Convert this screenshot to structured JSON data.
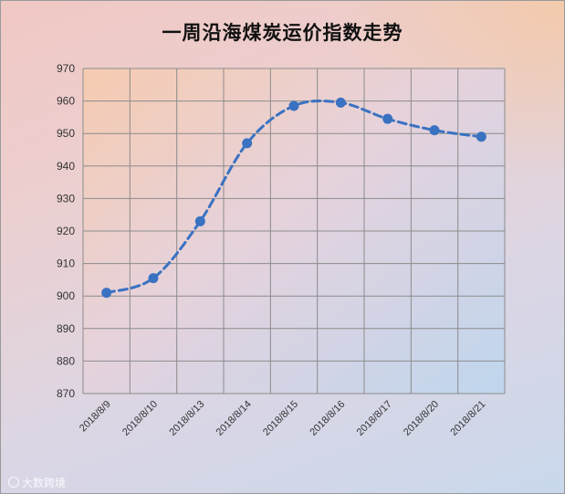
{
  "chart_data": {
    "type": "line",
    "title": "一周沿海煤炭运价指数走势",
    "categories": [
      "2018/8/9",
      "2018/8/10",
      "2018/8/13",
      "2018/8/14",
      "2018/8/15",
      "2018/8/16",
      "2018/8/17",
      "2018/8/20",
      "2018/8/21"
    ],
    "values": [
      901,
      905.5,
      923,
      947,
      958.5,
      959.5,
      954.5,
      951,
      949
    ],
    "ylim": [
      870,
      970
    ],
    "yticks": [
      "970",
      "960",
      "950",
      "940",
      "930",
      "920",
      "910",
      "900",
      "890",
      "880",
      "870"
    ],
    "grid": true,
    "legend": "none",
    "line_color": "#3a72c2",
    "line_style": "dashed"
  },
  "watermark": "大数跨境"
}
